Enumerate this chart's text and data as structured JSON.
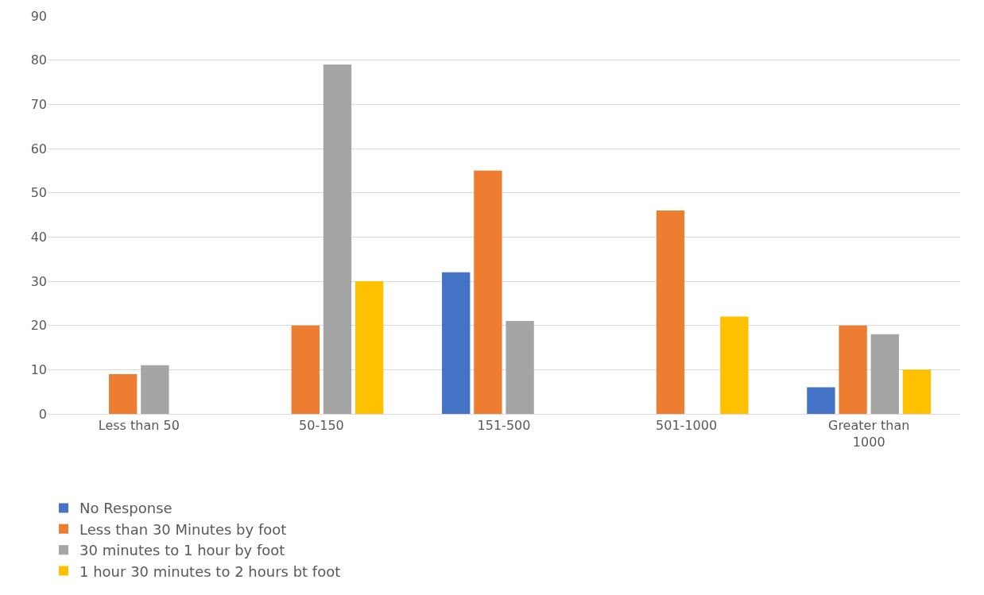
{
  "chart_data": {
    "type": "bar",
    "categories": [
      "Less than 50",
      "50-150",
      "151-500",
      "501-1000",
      "Greater than 1000"
    ],
    "series": [
      {
        "name": "No Response",
        "color": "#4472c4",
        "values": [
          0,
          0,
          32,
          0,
          6
        ]
      },
      {
        "name": "Less than 30 Minutes by foot",
        "color": "#ed7d31",
        "values": [
          9,
          20,
          55,
          46,
          20
        ]
      },
      {
        "name": "30 minutes to 1 hour by foot",
        "color": "#a5a5a5",
        "values": [
          11,
          79,
          21,
          0,
          18
        ]
      },
      {
        "name": "1 hour 30 minutes to 2 hours bt foot",
        "color": "#ffc000",
        "values": [
          0,
          30,
          0,
          22,
          10
        ]
      }
    ],
    "ylim": [
      0,
      90
    ],
    "yticks": [
      0,
      10,
      20,
      30,
      40,
      50,
      60,
      70,
      80,
      90
    ],
    "grid": "y",
    "legend": "bottom"
  }
}
